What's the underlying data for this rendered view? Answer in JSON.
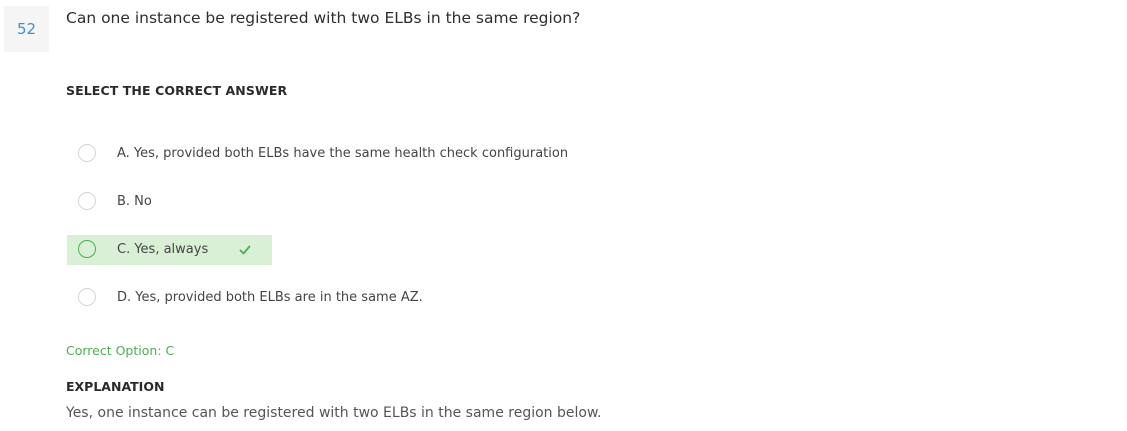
{
  "question": {
    "number": "52",
    "text": "Can one instance be registered with two ELBs in the same region?"
  },
  "answer_section": {
    "heading": "SELECT THE CORRECT ANSWER",
    "options": [
      {
        "label": "A. Yes, provided both ELBs have the same health check configuration",
        "selected": false
      },
      {
        "label": "B. No",
        "selected": false
      },
      {
        "label": "C. Yes, always",
        "selected": true,
        "icon": "checkmark-icon"
      },
      {
        "label": "D. Yes, provided both ELBs are in the same AZ.",
        "selected": false
      }
    ]
  },
  "result": {
    "correct_option": "Correct Option: C"
  },
  "explanation": {
    "heading": "EXPLANATION",
    "text": "Yes, one instance can be registered with two ELBs in the same region below."
  },
  "colors": {
    "accent_blue": "#3f8fd6",
    "correct_green": "#4caf50",
    "selected_bg": "#d9efd6"
  }
}
